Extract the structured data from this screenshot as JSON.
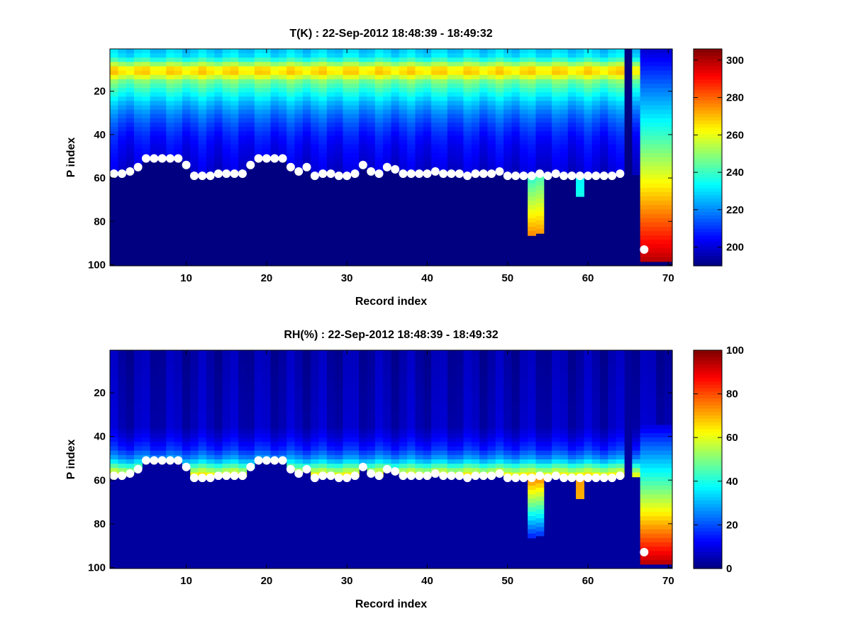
{
  "chart_data": [
    {
      "type": "heatmap",
      "title": "T(K) : 22-Sep-2012 18:48:39 - 18:49:32",
      "xlabel": "Record index",
      "ylabel": "P index",
      "xlim": [
        1,
        70
      ],
      "ylim": [
        100,
        1
      ],
      "y_reversed": true,
      "x_ticks": [
        10,
        20,
        30,
        40,
        50,
        60,
        70
      ],
      "y_ticks": [
        20,
        40,
        60,
        80,
        100
      ],
      "colormap": "jet",
      "colorbar": {
        "range": [
          190,
          306
        ],
        "ticks": [
          200,
          220,
          240,
          260,
          280,
          300
        ]
      },
      "profile": {
        "top_levels": [
          1,
          4,
          6,
          8,
          10,
          12,
          15,
          20,
          25,
          30,
          35,
          40,
          45,
          50,
          55
        ],
        "top_values": [
          228,
          232,
          246,
          258,
          270,
          262,
          247,
          236,
          226,
          218,
          212,
          207,
          204,
          202,
          200
        ]
      },
      "background_value": 190,
      "invalid_records": [
        65
      ],
      "boundary_series": [
        {
          "x": 1,
          "y": 58
        },
        {
          "x": 2,
          "y": 58
        },
        {
          "x": 3,
          "y": 57
        },
        {
          "x": 4,
          "y": 55
        },
        {
          "x": 5,
          "y": 51
        },
        {
          "x": 6,
          "y": 51
        },
        {
          "x": 7,
          "y": 51
        },
        {
          "x": 8,
          "y": 51
        },
        {
          "x": 9,
          "y": 51
        },
        {
          "x": 10,
          "y": 54
        },
        {
          "x": 11,
          "y": 59
        },
        {
          "x": 12,
          "y": 59
        },
        {
          "x": 13,
          "y": 59
        },
        {
          "x": 14,
          "y": 58
        },
        {
          "x": 15,
          "y": 58
        },
        {
          "x": 16,
          "y": 58
        },
        {
          "x": 17,
          "y": 58
        },
        {
          "x": 18,
          "y": 54
        },
        {
          "x": 19,
          "y": 51
        },
        {
          "x": 20,
          "y": 51
        },
        {
          "x": 21,
          "y": 51
        },
        {
          "x": 22,
          "y": 51
        },
        {
          "x": 23,
          "y": 55
        },
        {
          "x": 24,
          "y": 57
        },
        {
          "x": 25,
          "y": 55
        },
        {
          "x": 26,
          "y": 59
        },
        {
          "x": 27,
          "y": 58
        },
        {
          "x": 28,
          "y": 58
        },
        {
          "x": 29,
          "y": 59
        },
        {
          "x": 30,
          "y": 59
        },
        {
          "x": 31,
          "y": 58
        },
        {
          "x": 32,
          "y": 54
        },
        {
          "x": 33,
          "y": 57
        },
        {
          "x": 34,
          "y": 58
        },
        {
          "x": 35,
          "y": 55
        },
        {
          "x": 36,
          "y": 56
        },
        {
          "x": 37,
          "y": 58
        },
        {
          "x": 38,
          "y": 58
        },
        {
          "x": 39,
          "y": 58
        },
        {
          "x": 40,
          "y": 58
        },
        {
          "x": 41,
          "y": 57
        },
        {
          "x": 42,
          "y": 58
        },
        {
          "x": 43,
          "y": 58
        },
        {
          "x": 44,
          "y": 58
        },
        {
          "x": 45,
          "y": 59
        },
        {
          "x": 46,
          "y": 58
        },
        {
          "x": 47,
          "y": 58
        },
        {
          "x": 48,
          "y": 58
        },
        {
          "x": 49,
          "y": 57
        },
        {
          "x": 50,
          "y": 59
        },
        {
          "x": 51,
          "y": 59
        },
        {
          "x": 52,
          "y": 59
        },
        {
          "x": 53,
          "y": 59
        },
        {
          "x": 54,
          "y": 58
        },
        {
          "x": 55,
          "y": 59
        },
        {
          "x": 56,
          "y": 58
        },
        {
          "x": 57,
          "y": 59
        },
        {
          "x": 58,
          "y": 59
        },
        {
          "x": 59,
          "y": 59
        },
        {
          "x": 60,
          "y": 59
        },
        {
          "x": 61,
          "y": 59
        },
        {
          "x": 62,
          "y": 59
        },
        {
          "x": 63,
          "y": 59
        },
        {
          "x": 64,
          "y": 58
        },
        {
          "x": 67,
          "y": 93
        }
      ],
      "special_columns": [
        {
          "x": 53,
          "from": 59,
          "to": 87,
          "top_value": 238,
          "bottom_value": 278
        },
        {
          "x": 54,
          "from": 58,
          "to": 86,
          "top_value": 240,
          "bottom_value": 276
        },
        {
          "x": 59,
          "from": 59,
          "to": 69,
          "top_value": 232,
          "bottom_value": 236
        },
        {
          "x": 67,
          "from": 1,
          "to": 98,
          "top_value": 200,
          "bottom_value": 300
        },
        {
          "x": 68,
          "from": 1,
          "to": 98,
          "top_value": 200,
          "bottom_value": 300
        },
        {
          "x": 69,
          "from": 1,
          "to": 98,
          "top_value": 200,
          "bottom_value": 300
        },
        {
          "x": 70,
          "from": 1,
          "to": 98,
          "top_value": 200,
          "bottom_value": 300
        }
      ]
    },
    {
      "type": "heatmap",
      "title": "RH(%) : 22-Sep-2012 18:48:39 - 18:49:32",
      "xlabel": "Record index",
      "ylabel": "P index",
      "xlim": [
        1,
        70
      ],
      "ylim": [
        100,
        1
      ],
      "y_reversed": true,
      "x_ticks": [
        10,
        20,
        30,
        40,
        50,
        60,
        70
      ],
      "y_ticks": [
        20,
        40,
        60,
        80,
        100
      ],
      "colormap": "jet",
      "colorbar": {
        "range": [
          0,
          100
        ],
        "ticks": [
          0,
          20,
          40,
          60,
          80,
          100
        ]
      },
      "profile": {
        "top_levels": [
          1,
          35,
          40,
          45,
          50,
          54,
          57,
          60
        ],
        "top_values": [
          4,
          6,
          10,
          16,
          28,
          48,
          62,
          4
        ]
      },
      "background_value": 3,
      "invalid_records": [
        65
      ],
      "boundary_series": [
        {
          "x": 1,
          "y": 58
        },
        {
          "x": 2,
          "y": 58
        },
        {
          "x": 3,
          "y": 57
        },
        {
          "x": 4,
          "y": 55
        },
        {
          "x": 5,
          "y": 51
        },
        {
          "x": 6,
          "y": 51
        },
        {
          "x": 7,
          "y": 51
        },
        {
          "x": 8,
          "y": 51
        },
        {
          "x": 9,
          "y": 51
        },
        {
          "x": 10,
          "y": 54
        },
        {
          "x": 11,
          "y": 59
        },
        {
          "x": 12,
          "y": 59
        },
        {
          "x": 13,
          "y": 59
        },
        {
          "x": 14,
          "y": 58
        },
        {
          "x": 15,
          "y": 58
        },
        {
          "x": 16,
          "y": 58
        },
        {
          "x": 17,
          "y": 58
        },
        {
          "x": 18,
          "y": 54
        },
        {
          "x": 19,
          "y": 51
        },
        {
          "x": 20,
          "y": 51
        },
        {
          "x": 21,
          "y": 51
        },
        {
          "x": 22,
          "y": 51
        },
        {
          "x": 23,
          "y": 55
        },
        {
          "x": 24,
          "y": 57
        },
        {
          "x": 25,
          "y": 55
        },
        {
          "x": 26,
          "y": 59
        },
        {
          "x": 27,
          "y": 58
        },
        {
          "x": 28,
          "y": 58
        },
        {
          "x": 29,
          "y": 59
        },
        {
          "x": 30,
          "y": 59
        },
        {
          "x": 31,
          "y": 58
        },
        {
          "x": 32,
          "y": 54
        },
        {
          "x": 33,
          "y": 57
        },
        {
          "x": 34,
          "y": 58
        },
        {
          "x": 35,
          "y": 55
        },
        {
          "x": 36,
          "y": 56
        },
        {
          "x": 37,
          "y": 58
        },
        {
          "x": 38,
          "y": 58
        },
        {
          "x": 39,
          "y": 58
        },
        {
          "x": 40,
          "y": 58
        },
        {
          "x": 41,
          "y": 57
        },
        {
          "x": 42,
          "y": 58
        },
        {
          "x": 43,
          "y": 58
        },
        {
          "x": 44,
          "y": 58
        },
        {
          "x": 45,
          "y": 59
        },
        {
          "x": 46,
          "y": 58
        },
        {
          "x": 47,
          "y": 58
        },
        {
          "x": 48,
          "y": 58
        },
        {
          "x": 49,
          "y": 57
        },
        {
          "x": 50,
          "y": 59
        },
        {
          "x": 51,
          "y": 59
        },
        {
          "x": 52,
          "y": 59
        },
        {
          "x": 53,
          "y": 59
        },
        {
          "x": 54,
          "y": 58
        },
        {
          "x": 55,
          "y": 59
        },
        {
          "x": 56,
          "y": 58
        },
        {
          "x": 57,
          "y": 59
        },
        {
          "x": 58,
          "y": 59
        },
        {
          "x": 59,
          "y": 59
        },
        {
          "x": 60,
          "y": 59
        },
        {
          "x": 61,
          "y": 59
        },
        {
          "x": 62,
          "y": 59
        },
        {
          "x": 63,
          "y": 59
        },
        {
          "x": 64,
          "y": 58
        },
        {
          "x": 67,
          "y": 93
        }
      ],
      "special_columns": [
        {
          "x": 53,
          "from": 59,
          "to": 87,
          "top_value": 75,
          "bottom_value": 12
        },
        {
          "x": 54,
          "from": 58,
          "to": 86,
          "top_value": 76,
          "bottom_value": 14
        },
        {
          "x": 59,
          "from": 59,
          "to": 69,
          "top_value": 72,
          "bottom_value": 70
        },
        {
          "x": 67,
          "from": 35,
          "to": 98,
          "top_value": 10,
          "bottom_value": 95
        },
        {
          "x": 68,
          "from": 35,
          "to": 98,
          "top_value": 10,
          "bottom_value": 95
        },
        {
          "x": 69,
          "from": 35,
          "to": 98,
          "top_value": 10,
          "bottom_value": 95
        },
        {
          "x": 70,
          "from": 35,
          "to": 98,
          "top_value": 10,
          "bottom_value": 95
        }
      ]
    }
  ]
}
